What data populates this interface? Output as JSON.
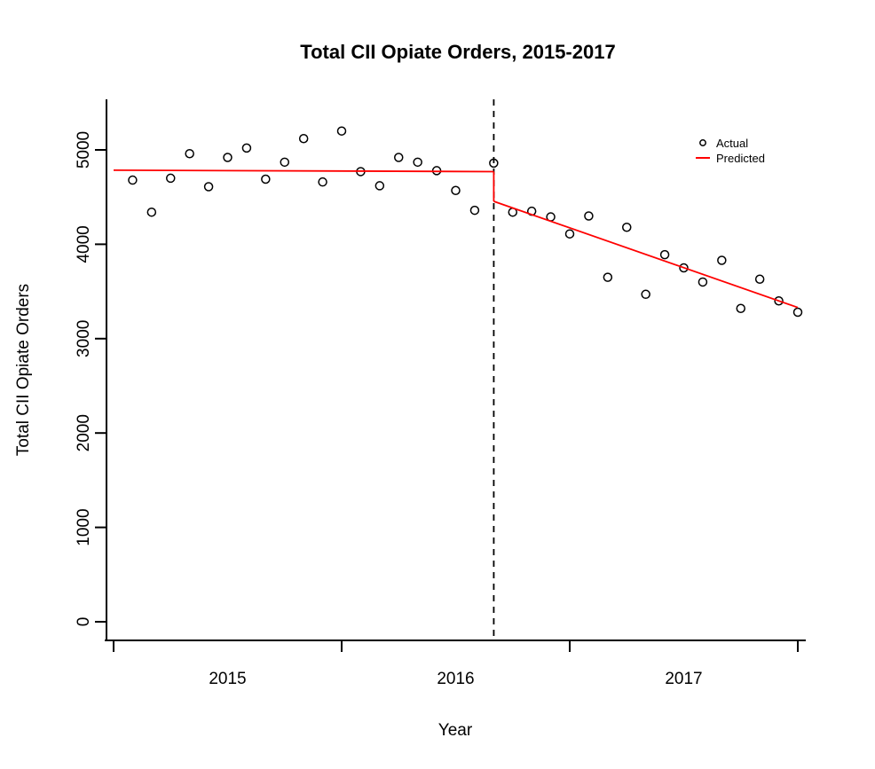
{
  "chart_data": {
    "type": "scatter",
    "title": "Total CII Opiate Orders, 2015-2017",
    "xlabel": "Year",
    "ylabel": "Total CII Opiate Orders",
    "x_tick_years": [
      2015,
      2016,
      2017,
      2018
    ],
    "x_year_labels": [
      "2015",
      "2016",
      "2017"
    ],
    "y_ticks": [
      "0",
      "1000",
      "2000",
      "3000",
      "4000",
      "5000"
    ],
    "xlim": [
      2014.96,
      2018.04
    ],
    "ylim": [
      0,
      5536
    ],
    "grid": false,
    "legend": {
      "position": "top-right",
      "items": [
        {
          "label": "Actual",
          "symbol": "open-circle",
          "color": "#000000"
        },
        {
          "label": "Predicted",
          "symbol": "line",
          "color": "#FF0000"
        }
      ]
    },
    "series": [
      {
        "name": "Actual",
        "type": "points",
        "color": "#000000",
        "start": "2015-01",
        "frequency": "monthly",
        "values": [
          4680,
          4340,
          4700,
          4960,
          4610,
          4920,
          5020,
          4690,
          4870,
          5120,
          4660,
          5200,
          4770,
          4620,
          4920,
          4870,
          4780,
          4570,
          4360,
          4860,
          4340,
          4350,
          4290,
          4110,
          4300,
          3650,
          4180,
          3470,
          3890,
          3750,
          3600,
          3830,
          3320,
          3630,
          3400,
          3280
        ]
      },
      {
        "name": "Predicted",
        "type": "line",
        "color": "#FF0000",
        "segments": [
          [
            [
              2015.0,
              4785
            ],
            [
              2016.667,
              4770
            ]
          ],
          [
            [
              2016.667,
              4770
            ],
            [
              2016.667,
              4455
            ]
          ],
          [
            [
              2016.667,
              4455
            ],
            [
              2018.0,
              3330
            ]
          ]
        ]
      }
    ],
    "intervention_line": {
      "x": 2016.667,
      "style": "dashed",
      "color": "#000000"
    }
  },
  "colors": {
    "background": "#FFFFFF",
    "axis": "#000000",
    "actual": "#000000",
    "predicted": "#FF0000"
  }
}
